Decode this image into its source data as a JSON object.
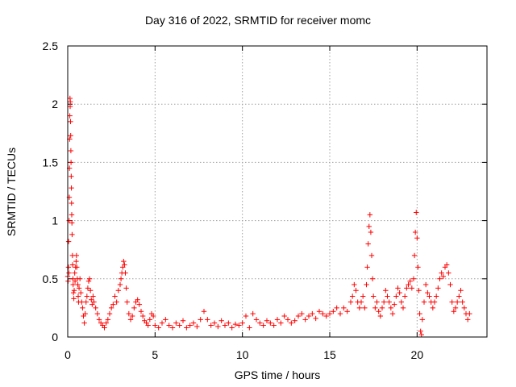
{
  "chart_data": {
    "type": "scatter",
    "title": "Day 316 of 2022, SRMTID for receiver momc",
    "xlabel": "GPS time / hours",
    "ylabel": "SRMTID / TECUs",
    "xlim": [
      0,
      24
    ],
    "ylim": [
      0,
      2.5
    ],
    "xticks": [
      0,
      5,
      10,
      15,
      20
    ],
    "xtick_labels": [
      "0",
      "5",
      "10",
      "15",
      "20"
    ],
    "yticks": [
      0,
      0.5,
      1,
      1.5,
      2,
      2.5
    ],
    "ytick_labels": [
      "0",
      "0.5",
      "1",
      "1.5",
      "2",
      "2.5"
    ],
    "grid": true,
    "marker": "+",
    "color": "#ff0000",
    "series": [
      {
        "name": "SRMTID",
        "points": [
          [
            0.0,
            0.52
          ],
          [
            0.02,
            0.48
          ],
          [
            0.04,
            0.6
          ],
          [
            0.05,
            0.82
          ],
          [
            0.07,
            0.55
          ],
          [
            0.08,
            1.0
          ],
          [
            0.09,
            1.2
          ],
          [
            0.1,
            1.45
          ],
          [
            0.11,
            1.7
          ],
          [
            0.12,
            1.9
          ],
          [
            0.13,
            2.05
          ],
          [
            0.14,
            1.98
          ],
          [
            0.15,
            2.02
          ],
          [
            0.16,
            1.85
          ],
          [
            0.17,
            1.73
          ],
          [
            0.18,
            1.6
          ],
          [
            0.19,
            1.5
          ],
          [
            0.2,
            1.38
          ],
          [
            0.21,
            1.28
          ],
          [
            0.22,
            1.15
          ],
          [
            0.23,
            1.05
          ],
          [
            0.24,
            0.98
          ],
          [
            0.25,
            0.88
          ],
          [
            0.27,
            0.7
          ],
          [
            0.28,
            0.62
          ],
          [
            0.3,
            0.5
          ],
          [
            0.31,
            0.45
          ],
          [
            0.33,
            0.38
          ],
          [
            0.35,
            0.33
          ],
          [
            0.37,
            0.4
          ],
          [
            0.4,
            0.55
          ],
          [
            0.42,
            0.48
          ],
          [
            0.45,
            0.6
          ],
          [
            0.48,
            0.65
          ],
          [
            0.5,
            0.7
          ],
          [
            0.52,
            0.6
          ],
          [
            0.55,
            0.5
          ],
          [
            0.58,
            0.45
          ],
          [
            0.6,
            0.35
          ],
          [
            0.62,
            0.3
          ],
          [
            0.65,
            0.42
          ],
          [
            0.7,
            0.5
          ],
          [
            0.75,
            0.38
          ],
          [
            0.8,
            0.3
          ],
          [
            0.85,
            0.25
          ],
          [
            0.9,
            0.18
          ],
          [
            0.95,
            0.12
          ],
          [
            1.0,
            0.2
          ],
          [
            1.05,
            0.3
          ],
          [
            1.1,
            0.35
          ],
          [
            1.15,
            0.42
          ],
          [
            1.2,
            0.48
          ],
          [
            1.25,
            0.5
          ],
          [
            1.3,
            0.4
          ],
          [
            1.35,
            0.32
          ],
          [
            1.4,
            0.28
          ],
          [
            1.45,
            0.35
          ],
          [
            1.5,
            0.3
          ],
          [
            1.6,
            0.25
          ],
          [
            1.7,
            0.2
          ],
          [
            1.8,
            0.15
          ],
          [
            1.9,
            0.12
          ],
          [
            2.0,
            0.1
          ],
          [
            2.1,
            0.08
          ],
          [
            2.2,
            0.12
          ],
          [
            2.3,
            0.15
          ],
          [
            2.4,
            0.2
          ],
          [
            2.5,
            0.25
          ],
          [
            2.6,
            0.28
          ],
          [
            2.7,
            0.35
          ],
          [
            2.8,
            0.3
          ],
          [
            2.9,
            0.4
          ],
          [
            3.0,
            0.45
          ],
          [
            3.05,
            0.5
          ],
          [
            3.1,
            0.55
          ],
          [
            3.15,
            0.6
          ],
          [
            3.2,
            0.65
          ],
          [
            3.25,
            0.62
          ],
          [
            3.3,
            0.55
          ],
          [
            3.35,
            0.42
          ],
          [
            3.4,
            0.3
          ],
          [
            3.5,
            0.2
          ],
          [
            3.6,
            0.15
          ],
          [
            3.7,
            0.18
          ],
          [
            3.8,
            0.25
          ],
          [
            3.9,
            0.3
          ],
          [
            4.0,
            0.32
          ],
          [
            4.1,
            0.28
          ],
          [
            4.2,
            0.22
          ],
          [
            4.3,
            0.18
          ],
          [
            4.4,
            0.14
          ],
          [
            4.5,
            0.12
          ],
          [
            4.6,
            0.1
          ],
          [
            4.7,
            0.15
          ],
          [
            4.8,
            0.2
          ],
          [
            4.9,
            0.18
          ],
          [
            5.0,
            0.1
          ],
          [
            5.2,
            0.08
          ],
          [
            5.4,
            0.12
          ],
          [
            5.6,
            0.15
          ],
          [
            5.8,
            0.1
          ],
          [
            6.0,
            0.08
          ],
          [
            6.2,
            0.12
          ],
          [
            6.4,
            0.1
          ],
          [
            6.6,
            0.14
          ],
          [
            6.8,
            0.08
          ],
          [
            7.0,
            0.1
          ],
          [
            7.2,
            0.12
          ],
          [
            7.4,
            0.09
          ],
          [
            7.6,
            0.15
          ],
          [
            7.8,
            0.22
          ],
          [
            8.0,
            0.15
          ],
          [
            8.2,
            0.1
          ],
          [
            8.4,
            0.12
          ],
          [
            8.6,
            0.09
          ],
          [
            8.8,
            0.14
          ],
          [
            9.0,
            0.1
          ],
          [
            9.2,
            0.12
          ],
          [
            9.4,
            0.08
          ],
          [
            9.6,
            0.11
          ],
          [
            9.8,
            0.1
          ],
          [
            10.0,
            0.12
          ],
          [
            10.2,
            0.18
          ],
          [
            10.4,
            0.08
          ],
          [
            10.6,
            0.2
          ],
          [
            10.8,
            0.15
          ],
          [
            11.0,
            0.12
          ],
          [
            11.2,
            0.1
          ],
          [
            11.4,
            0.14
          ],
          [
            11.6,
            0.12
          ],
          [
            11.8,
            0.1
          ],
          [
            12.0,
            0.15
          ],
          [
            12.2,
            0.12
          ],
          [
            12.4,
            0.18
          ],
          [
            12.6,
            0.15
          ],
          [
            12.8,
            0.12
          ],
          [
            13.0,
            0.14
          ],
          [
            13.2,
            0.18
          ],
          [
            13.4,
            0.2
          ],
          [
            13.6,
            0.15
          ],
          [
            13.8,
            0.18
          ],
          [
            14.0,
            0.2
          ],
          [
            14.2,
            0.16
          ],
          [
            14.4,
            0.22
          ],
          [
            14.6,
            0.2
          ],
          [
            14.8,
            0.18
          ],
          [
            15.0,
            0.2
          ],
          [
            15.2,
            0.22
          ],
          [
            15.4,
            0.25
          ],
          [
            15.6,
            0.2
          ],
          [
            15.8,
            0.25
          ],
          [
            16.0,
            0.22
          ],
          [
            16.2,
            0.3
          ],
          [
            16.3,
            0.35
          ],
          [
            16.4,
            0.45
          ],
          [
            16.5,
            0.4
          ],
          [
            16.6,
            0.3
          ],
          [
            16.7,
            0.25
          ],
          [
            16.8,
            0.3
          ],
          [
            16.9,
            0.35
          ],
          [
            17.0,
            0.25
          ],
          [
            17.1,
            0.45
          ],
          [
            17.15,
            0.6
          ],
          [
            17.2,
            0.8
          ],
          [
            17.25,
            0.95
          ],
          [
            17.3,
            1.05
          ],
          [
            17.35,
            0.9
          ],
          [
            17.4,
            0.7
          ],
          [
            17.45,
            0.5
          ],
          [
            17.5,
            0.35
          ],
          [
            17.6,
            0.25
          ],
          [
            17.7,
            0.3
          ],
          [
            17.8,
            0.22
          ],
          [
            17.9,
            0.18
          ],
          [
            18.0,
            0.25
          ],
          [
            18.1,
            0.3
          ],
          [
            18.2,
            0.4
          ],
          [
            18.3,
            0.35
          ],
          [
            18.4,
            0.3
          ],
          [
            18.5,
            0.25
          ],
          [
            18.6,
            0.2
          ],
          [
            18.7,
            0.28
          ],
          [
            18.8,
            0.35
          ],
          [
            18.9,
            0.42
          ],
          [
            19.0,
            0.38
          ],
          [
            19.1,
            0.3
          ],
          [
            19.2,
            0.25
          ],
          [
            19.3,
            0.35
          ],
          [
            19.4,
            0.42
          ],
          [
            19.5,
            0.45
          ],
          [
            19.6,
            0.48
          ],
          [
            19.7,
            0.42
          ],
          [
            19.8,
            0.5
          ],
          [
            19.85,
            0.7
          ],
          [
            19.9,
            0.9
          ],
          [
            19.95,
            1.07
          ],
          [
            20.0,
            0.85
          ],
          [
            20.05,
            0.6
          ],
          [
            20.1,
            0.4
          ],
          [
            20.15,
            0.2
          ],
          [
            20.2,
            0.05
          ],
          [
            20.25,
            0.02
          ],
          [
            20.3,
            0.15
          ],
          [
            20.4,
            0.3
          ],
          [
            20.5,
            0.45
          ],
          [
            20.6,
            0.38
          ],
          [
            20.7,
            0.35
          ],
          [
            20.8,
            0.3
          ],
          [
            20.9,
            0.25
          ],
          [
            21.0,
            0.3
          ],
          [
            21.1,
            0.35
          ],
          [
            21.2,
            0.42
          ],
          [
            21.3,
            0.5
          ],
          [
            21.4,
            0.55
          ],
          [
            21.5,
            0.52
          ],
          [
            21.6,
            0.6
          ],
          [
            21.7,
            0.62
          ],
          [
            21.8,
            0.55
          ],
          [
            21.9,
            0.45
          ],
          [
            22.0,
            0.3
          ],
          [
            22.1,
            0.22
          ],
          [
            22.2,
            0.25
          ],
          [
            22.3,
            0.3
          ],
          [
            22.4,
            0.35
          ],
          [
            22.5,
            0.4
          ],
          [
            22.6,
            0.3
          ],
          [
            22.7,
            0.25
          ],
          [
            22.8,
            0.2
          ],
          [
            22.9,
            0.15
          ],
          [
            23.0,
            0.2
          ]
        ]
      }
    ]
  }
}
